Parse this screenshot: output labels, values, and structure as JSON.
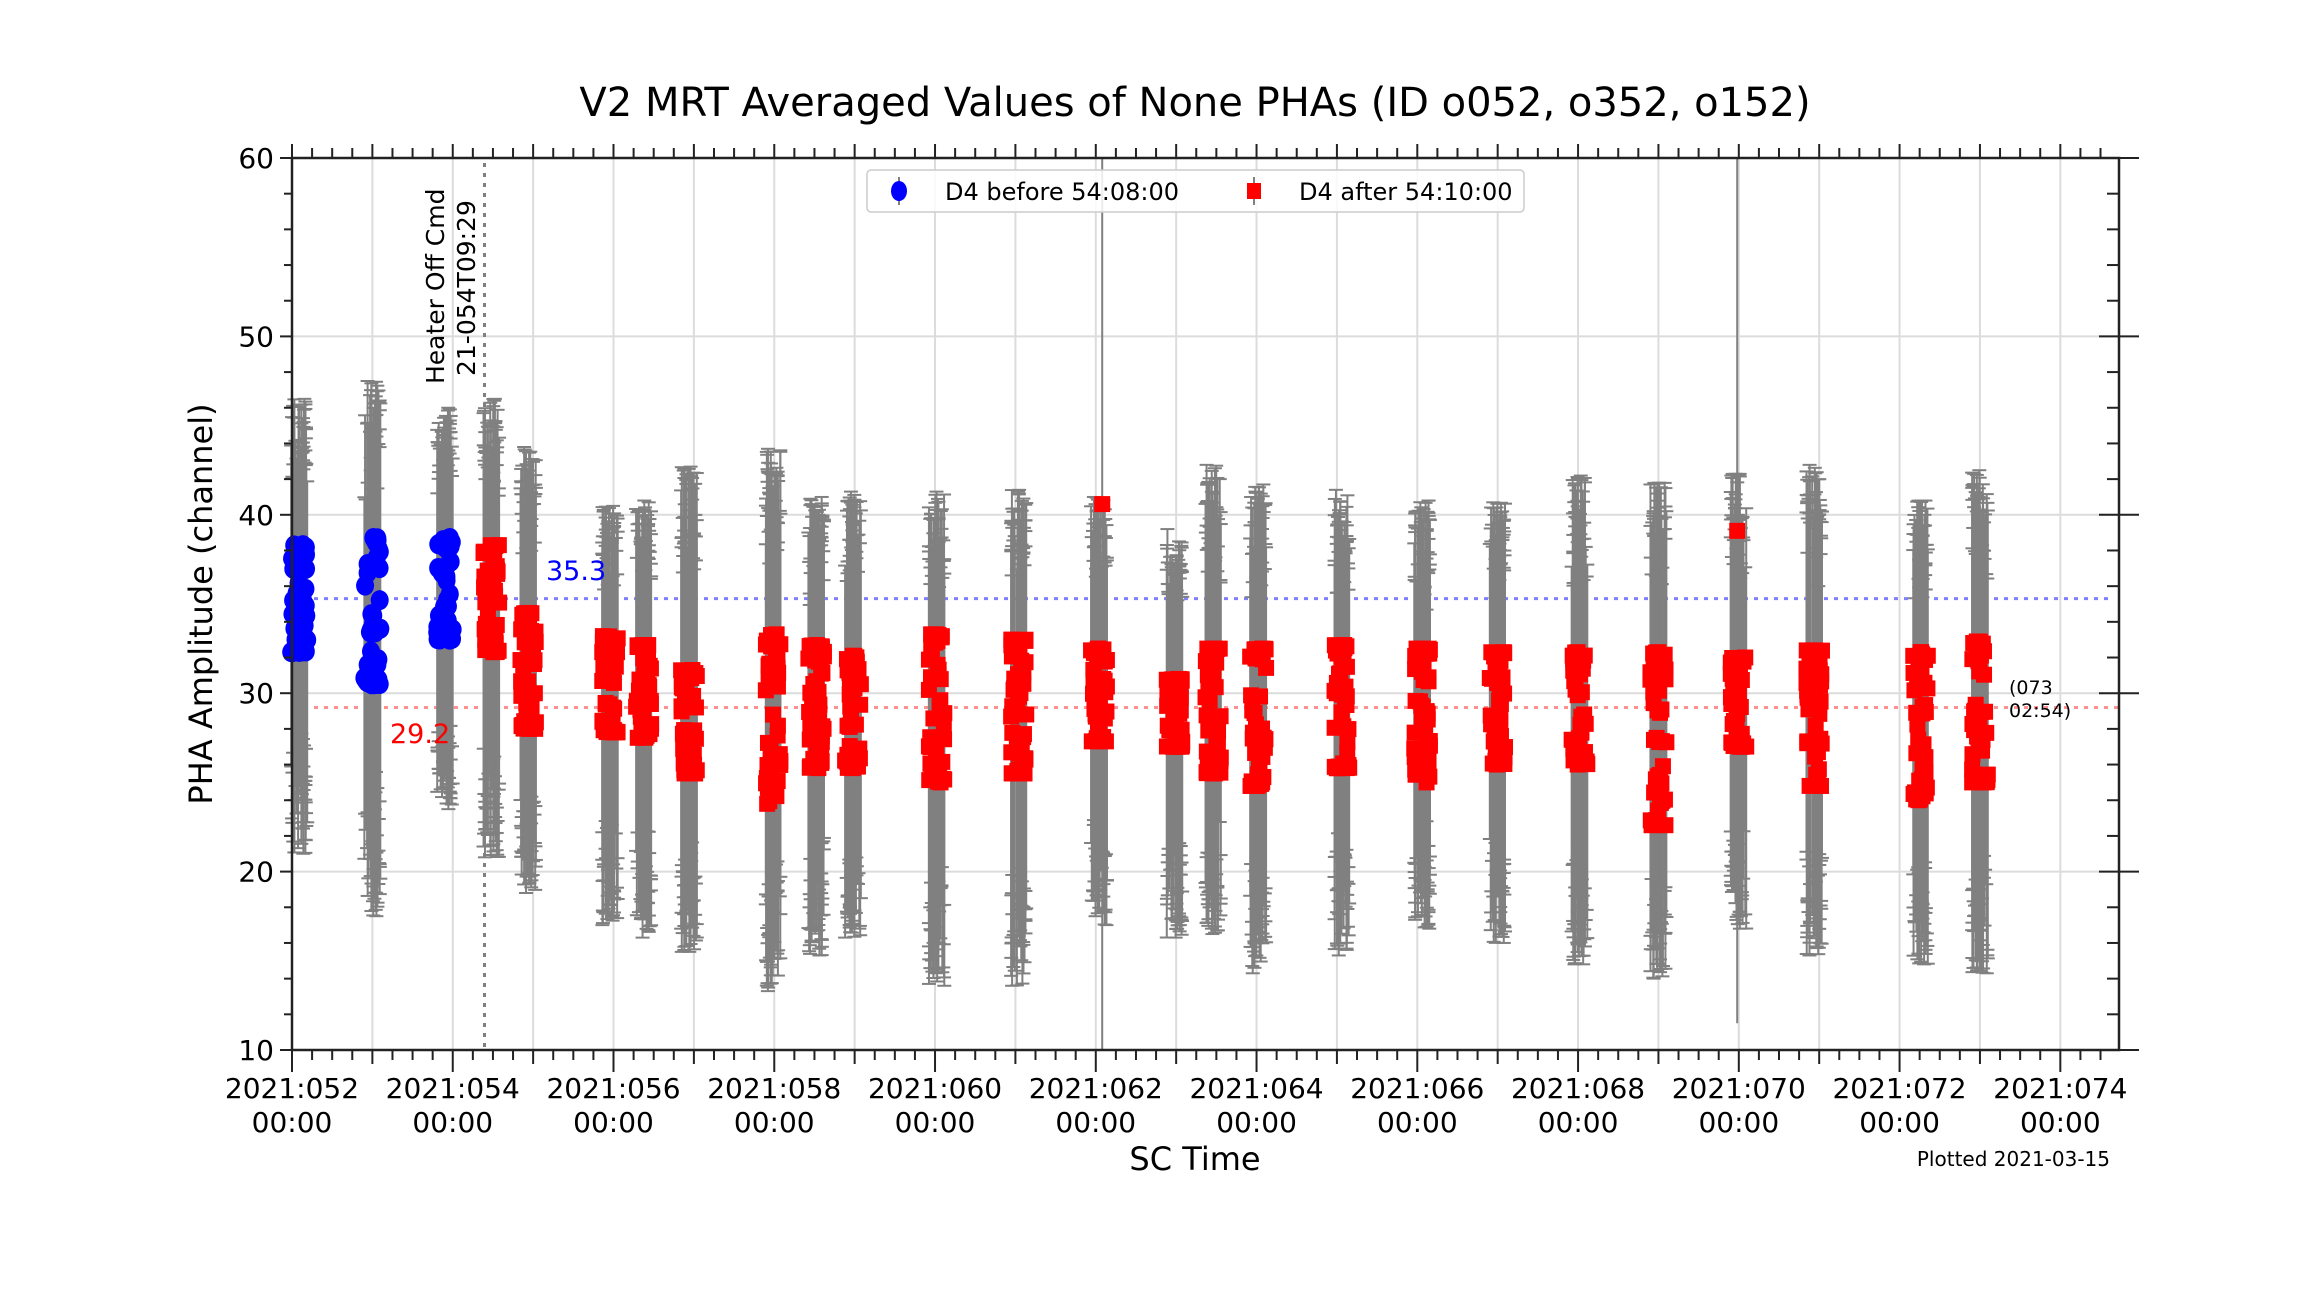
{
  "chart_data": {
    "type": "scatter",
    "title": "V2 MRT Averaged Values of None PHAs (ID o052, o352, o152)",
    "xlabel": "SC Time",
    "ylabel": "PHA Amplitude (channel)",
    "xlim_day": [
      52,
      74.73
    ],
    "ylim": [
      10,
      60
    ],
    "grid": true,
    "legend_placement": "upper-center",
    "x_ticks": [
      {
        "day": 52,
        "l1": "2021:052",
        "l2": "00:00"
      },
      {
        "day": 54,
        "l1": "2021:054",
        "l2": "00:00"
      },
      {
        "day": 56,
        "l1": "2021:056",
        "l2": "00:00"
      },
      {
        "day": 58,
        "l1": "2021:058",
        "l2": "00:00"
      },
      {
        "day": 60,
        "l1": "2021:060",
        "l2": "00:00"
      },
      {
        "day": 62,
        "l1": "2021:062",
        "l2": "00:00"
      },
      {
        "day": 64,
        "l1": "2021:064",
        "l2": "00:00"
      },
      {
        "day": 66,
        "l1": "2021:066",
        "l2": "00:00"
      },
      {
        "day": 68,
        "l1": "2021:068",
        "l2": "00:00"
      },
      {
        "day": 70,
        "l1": "2021:070",
        "l2": "00:00"
      },
      {
        "day": 72,
        "l1": "2021:072",
        "l2": "00:00"
      },
      {
        "day": 74,
        "l1": "2021:074",
        "l2": "00:00"
      }
    ],
    "y_ticks": [
      "10",
      "20",
      "30",
      "40",
      "50",
      "60"
    ],
    "colors": {
      "before": "#0000ff",
      "after": "#ff0000",
      "errorbar": "#808080"
    },
    "series": [
      {
        "name": "D4 before 54:08:00",
        "marker": "circle",
        "mean": 35.3,
        "clusters": [
          {
            "day": 52.09,
            "ymin": 32.3,
            "ymax": 38.3,
            "err_lo": 21.0,
            "err_hi": 46.5
          },
          {
            "day": 53.0,
            "ymin": 30.5,
            "ymax": 38.7,
            "err_lo": 17.5,
            "err_hi": 47.5
          },
          {
            "day": 53.9,
            "ymin": 33.0,
            "ymax": 38.7,
            "err_lo": 23.5,
            "err_hi": 46.0
          }
        ]
      },
      {
        "name": "D4 after 54:10:00",
        "marker": "square",
        "mean": 29.2,
        "clusters": [
          {
            "day": 54.48,
            "ymin": 32.3,
            "ymax": 38.3,
            "err_lo": 20.8,
            "err_hi": 46.5
          },
          {
            "day": 54.94,
            "ymin": 28.0,
            "ymax": 34.5,
            "err_lo": 18.8,
            "err_hi": 43.8
          },
          {
            "day": 55.96,
            "ymin": 27.8,
            "ymax": 33.2,
            "err_lo": 17.0,
            "err_hi": 40.5
          },
          {
            "day": 56.37,
            "ymin": 27.5,
            "ymax": 32.7,
            "err_lo": 16.3,
            "err_hi": 40.8
          },
          {
            "day": 56.94,
            "ymin": 25.5,
            "ymax": 31.3,
            "err_lo": 15.5,
            "err_hi": 42.7
          },
          {
            "day": 57.98,
            "ymin": 23.8,
            "ymax": 33.3,
            "err_lo": 13.3,
            "err_hi": 43.7
          },
          {
            "day": 58.52,
            "ymin": 25.8,
            "ymax": 32.7,
            "err_lo": 15.3,
            "err_hi": 41.0
          },
          {
            "day": 58.98,
            "ymin": 25.8,
            "ymax": 32.1,
            "err_lo": 16.3,
            "err_hi": 41.3
          },
          {
            "day": 60.02,
            "ymin": 25.0,
            "ymax": 33.3,
            "err_lo": 13.6,
            "err_hi": 41.3
          },
          {
            "day": 61.04,
            "ymin": 25.5,
            "ymax": 33.0,
            "err_lo": 13.6,
            "err_hi": 41.4
          },
          {
            "day": 62.04,
            "ymin": 27.3,
            "ymax": 32.5,
            "err_lo": 17.0,
            "err_hi": 41.0
          },
          {
            "day": 62.98,
            "ymin": 27.0,
            "ymax": 30.8,
            "err_lo": 16.3,
            "err_hi": 39.2
          },
          {
            "day": 63.46,
            "ymin": 25.5,
            "ymax": 32.5,
            "err_lo": 16.5,
            "err_hi": 42.8
          },
          {
            "day": 64.02,
            "ymin": 24.8,
            "ymax": 32.5,
            "err_lo": 14.3,
            "err_hi": 41.7
          },
          {
            "day": 65.06,
            "ymin": 25.8,
            "ymax": 32.7,
            "err_lo": 15.3,
            "err_hi": 41.4
          },
          {
            "day": 66.06,
            "ymin": 25.0,
            "ymax": 32.5,
            "err_lo": 16.8,
            "err_hi": 40.8
          },
          {
            "day": 67.0,
            "ymin": 26.0,
            "ymax": 32.3,
            "err_lo": 16.0,
            "err_hi": 40.7
          },
          {
            "day": 68.02,
            "ymin": 26.0,
            "ymax": 32.3,
            "err_lo": 14.8,
            "err_hi": 42.2
          },
          {
            "day": 69.0,
            "ymin": 22.6,
            "ymax": 32.3,
            "err_lo": 14.0,
            "err_hi": 41.8
          },
          {
            "day": 70.0,
            "ymin": 27.0,
            "ymax": 32.0,
            "err_lo": 16.8,
            "err_hi": 42.3
          },
          {
            "day": 70.94,
            "ymin": 24.8,
            "ymax": 32.4,
            "err_lo": 15.3,
            "err_hi": 42.8
          },
          {
            "day": 72.26,
            "ymin": 24.0,
            "ymax": 32.3,
            "err_lo": 14.8,
            "err_hi": 40.8
          },
          {
            "day": 73.0,
            "ymin": 25.0,
            "ymax": 32.9,
            "err_lo": 14.3,
            "err_hi": 42.5
          }
        ],
        "outliers": [
          {
            "day": 62.08,
            "y": 40.6,
            "err_lo": 10.0,
            "err_hi": 60.0
          },
          {
            "day": 69.98,
            "y": 39.1,
            "err_lo": 11.5,
            "err_hi": 60.0
          }
        ]
      }
    ],
    "annotations": {
      "heater_line_day": 54.395,
      "heater_l1": "Heater Off Cmd",
      "heater_l2": "21-054T09:29",
      "mean_before_label": "35.3",
      "mean_after_label": "29.2",
      "end_l1": "(073",
      "end_l2": "02:54)",
      "plotted": "Plotted 2021-03-15"
    }
  }
}
